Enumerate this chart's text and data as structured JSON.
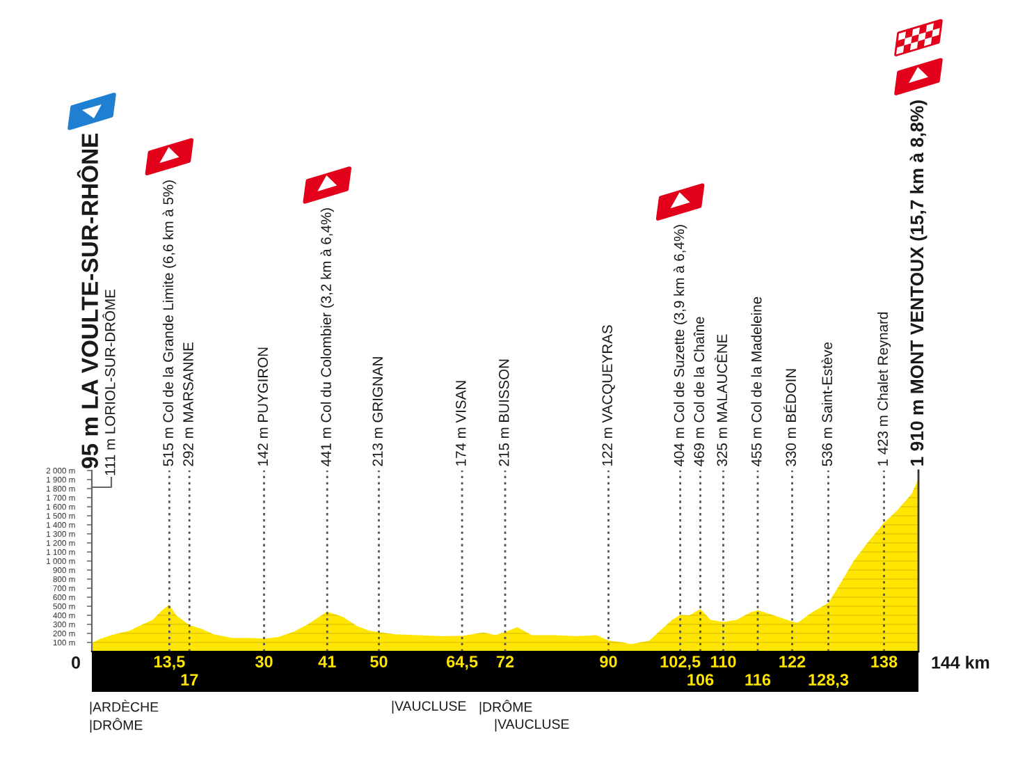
{
  "chart_data": {
    "type": "area",
    "color": "#ffe500",
    "x": [
      0,
      1.5,
      3.4,
      6.6,
      8.2,
      10.6,
      12.3,
      13.5,
      14.7,
      17,
      19.1,
      21.2,
      24.4,
      27.6,
      30,
      32.5,
      35.2,
      37.6,
      41,
      43.8,
      46.2,
      48.3,
      50,
      52.7,
      56.7,
      60.8,
      64.5,
      68.2,
      70.3,
      72,
      74.1,
      76.6,
      80.6,
      84.6,
      87.9,
      90,
      92.6,
      93.9,
      95.5,
      97.1,
      99.5,
      101.1,
      102.5,
      104.1,
      106,
      107.8,
      110,
      112.3,
      114.7,
      116,
      118.8,
      122,
      123,
      125.4,
      128.3,
      130.3,
      132.7,
      135.1,
      138,
      140.3,
      142.8,
      144
    ],
    "values": [
      95,
      140,
      180,
      230,
      280,
      350,
      460,
      515,
      400,
      292,
      250,
      190,
      150,
      150,
      142,
      160,
      220,
      300,
      441,
      380,
      280,
      230,
      213,
      190,
      180,
      170,
      174,
      210,
      180,
      215,
      270,
      180,
      180,
      170,
      180,
      122,
      100,
      80,
      100,
      120,
      260,
      350,
      404,
      400,
      469,
      350,
      325,
      350,
      430,
      455,
      400,
      330,
      320,
      430,
      536,
      740,
      1000,
      1200,
      1423,
      1560,
      1740,
      1910
    ],
    "xlim": [
      0,
      144
    ],
    "ylim": [
      0,
      2000
    ],
    "xticks": [
      {
        "value": 13.5,
        "label": "13,5"
      },
      30,
      41,
      50,
      {
        "value": 64.5,
        "label": "64,5"
      },
      72,
      90,
      {
        "value": 102.5,
        "label": "102,5"
      },
      110,
      122,
      138
    ],
    "x2lim": [
      0,
      144
    ],
    "x2ticks": [
      17,
      106,
      116,
      {
        "value": 128.3,
        "label": "128,3"
      }
    ],
    "yticks": [
      {
        "value": 100,
        "label": "100 m"
      },
      {
        "value": 200,
        "label": "200 m"
      },
      {
        "value": 300,
        "label": "300 m"
      },
      {
        "value": 400,
        "label": "400 m"
      },
      {
        "value": 500,
        "label": "500 m"
      },
      {
        "value": 600,
        "label": "600 m"
      },
      {
        "value": 700,
        "label": "700 m"
      },
      {
        "value": 800,
        "label": "800 m"
      },
      {
        "value": 900,
        "label": "900 m"
      },
      {
        "value": 1000,
        "label": "1 000 m"
      },
      {
        "value": 1100,
        "label": "1 100 m"
      },
      {
        "value": 1200,
        "label": "1 200 m"
      },
      {
        "value": 1300,
        "label": "1 300 m"
      },
      {
        "value": 1400,
        "label": "1 400 m"
      },
      {
        "value": 1500,
        "label": "1 500 m"
      },
      {
        "value": 1600,
        "label": "1 600 m"
      },
      {
        "value": 1700,
        "label": "1 700 m"
      },
      {
        "value": 1800,
        "label": "1 800 m"
      },
      {
        "value": 1900,
        "label": "1 900 m"
      },
      {
        "value": 2000,
        "label": "2 000 m"
      }
    ],
    "grid": "y",
    "ref_lines": [
      {
        "axis": "x",
        "value": 13.5,
        "label": "515 m Col de la Grande Limite (6,6 km à 5%)",
        "color": "#555555",
        "line_style": "dotted"
      },
      {
        "axis": "x",
        "value": 17,
        "label": "292 m MARSANNE",
        "color": "#555555",
        "line_style": "dotted"
      },
      {
        "axis": "x",
        "value": 30,
        "label": "142 m PUYGIRON",
        "color": "#555555",
        "line_style": "dotted"
      },
      {
        "axis": "x",
        "value": 41,
        "label": "441 m Col du Colombier (3,2 km à 6,4%)",
        "color": "#555555",
        "line_style": "dotted"
      },
      {
        "axis": "x",
        "value": 50,
        "label": "213 m GRIGNAN",
        "color": "#555555",
        "line_style": "dotted"
      },
      {
        "axis": "x",
        "value": 64.5,
        "label": "174 m VISAN",
        "color": "#555555",
        "line_style": "dotted"
      },
      {
        "axis": "x",
        "value": 72,
        "label": "215 m BUISSON",
        "color": "#555555",
        "line_style": "dotted"
      },
      {
        "axis": "x",
        "value": 90,
        "label": "122 m VACQUEYRAS",
        "color": "#555555",
        "line_style": "dotted"
      },
      {
        "axis": "x",
        "value": 102.5,
        "label": "404 m Col de Suzette (3,9 km à 6,4%)",
        "color": "#555555",
        "line_style": "dotted"
      },
      {
        "axis": "x",
        "value": 106,
        "label": "469 m Col de la Chaîne",
        "color": "#555555",
        "line_style": "dotted"
      },
      {
        "axis": "x",
        "value": 110,
        "label": "325 m MALAUCÈNE",
        "color": "#555555",
        "line_style": "dotted"
      },
      {
        "axis": "x",
        "value": 116,
        "label": "455 m Col de la Madeleine",
        "color": "#555555",
        "line_style": "dotted"
      },
      {
        "axis": "x",
        "value": 122,
        "label": "330 m BÉDOIN",
        "color": "#555555",
        "line_style": "dotted"
      },
      {
        "axis": "x",
        "value": 128.3,
        "label": "536 m Saint-Estève",
        "color": "#555555",
        "line_style": "dotted"
      },
      {
        "axis": "x",
        "value": 138,
        "label": "1 423 m Chalet Reynard",
        "color": "#555555",
        "line_style": "dotted"
      },
      {
        "axis": "x",
        "value": 144,
        "label": "1 910 m MONT VENTOUX (15,7 km à 8,8%)",
        "color": "#333333",
        "line_style": "solid"
      }
    ],
    "annotations": [
      "95 m LA VOULTE-SUR-RHÔNE",
      "111 m LORIOL-SUR-DRÔME",
      "0",
      "144 km",
      "|ARDÈCHE",
      "|DRÔME",
      "|VAUCLUSE",
      "|DRÔME",
      "|VAUCLUSE"
    ]
  }
}
